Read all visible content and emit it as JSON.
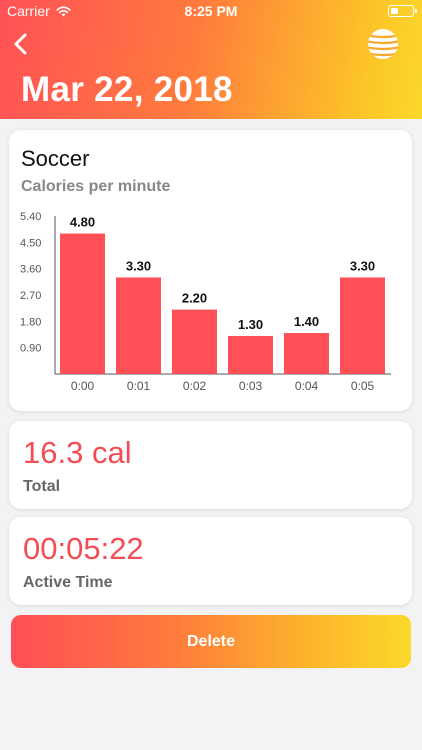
{
  "status_bar": {
    "carrier": "Carrier",
    "time": "8:25 PM",
    "wifi_icon": "wifi-icon",
    "battery_icon": "battery-icon"
  },
  "nav": {
    "back_icon": "chevron-left-icon",
    "menu_icon": "globe-icon"
  },
  "header": {
    "date_title": "Mar 22, 2018"
  },
  "colors": {
    "accent": "#f24c54",
    "bar": "#ff4f57",
    "gradient_start": "#ff5157",
    "gradient_end": "#fbd82a"
  },
  "activity": {
    "name": "Soccer",
    "chart_subtitle": "Calories per minute"
  },
  "chart_data": {
    "type": "bar",
    "title": "Calories per minute",
    "categories": [
      "0:00",
      "0:01",
      "0:02",
      "0:03",
      "0:04",
      "0:05"
    ],
    "values": [
      4.8,
      3.3,
      2.2,
      1.3,
      1.4,
      3.3
    ],
    "value_labels": [
      "4.80",
      "3.30",
      "2.20",
      "1.30",
      "1.40",
      "3.30"
    ],
    "y_ticks": [
      "0.90",
      "1.80",
      "2.70",
      "3.60",
      "4.50",
      "5.40"
    ],
    "ylim": [
      0,
      5.4
    ],
    "grid": false,
    "legend": "none"
  },
  "stats": {
    "total_value": "16.3 cal",
    "total_label": "Total",
    "active_time_value": "00:05:22",
    "active_time_label": "Active Time"
  },
  "actions": {
    "delete_label": "Delete"
  }
}
